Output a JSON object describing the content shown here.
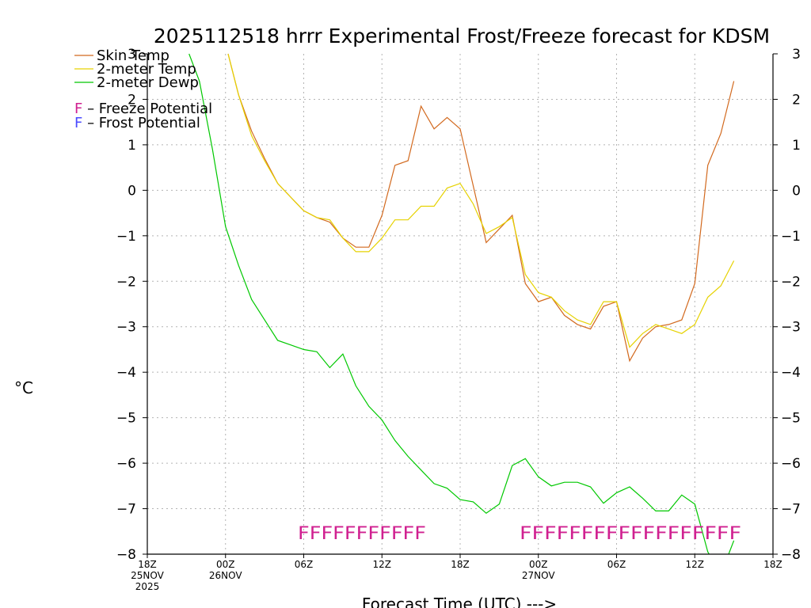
{
  "chart_data": {
    "type": "line",
    "title": "2025112518 hrrr Experimental Frost/Freeze forecast for KDSM",
    "ylabel_unit": "°C",
    "xlabel": "Forecast Time (UTC) --->",
    "ylim": [
      -8,
      3
    ],
    "xlim": [
      0,
      48
    ],
    "yticks": [
      "3",
      "2",
      "1",
      "0",
      "−1",
      "−2",
      "−3",
      "−4",
      "−5",
      "−6",
      "−7",
      "−8"
    ],
    "ytick_values": [
      3,
      2,
      1,
      0,
      -1,
      -2,
      -3,
      -4,
      -5,
      -6,
      -7,
      -8
    ],
    "xticks": [
      {
        "hour": 0,
        "label": "18Z",
        "date": "25NOV",
        "year": "2025"
      },
      {
        "hour": 6,
        "label": "00Z",
        "date": "26NOV",
        "year": ""
      },
      {
        "hour": 12,
        "label": "06Z",
        "date": "",
        "year": ""
      },
      {
        "hour": 18,
        "label": "12Z",
        "date": "",
        "year": ""
      },
      {
        "hour": 24,
        "label": "18Z",
        "date": "",
        "year": ""
      },
      {
        "hour": 30,
        "label": "00Z",
        "date": "27NOV",
        "year": ""
      },
      {
        "hour": 36,
        "label": "06Z",
        "date": "",
        "year": ""
      },
      {
        "hour": 42,
        "label": "12Z",
        "date": "",
        "year": ""
      },
      {
        "hour": 48,
        "label": "18Z",
        "date": "",
        "year": ""
      }
    ],
    "grid": true,
    "series": [
      {
        "name": "Skin Temp",
        "color": "#d2691e",
        "points": [
          [
            6.2,
            3.0
          ],
          [
            7,
            2.1
          ],
          [
            8,
            1.3
          ],
          [
            9,
            0.7
          ],
          [
            10,
            0.15
          ],
          [
            11,
            -0.15
          ],
          [
            12,
            -0.45
          ],
          [
            13,
            -0.6
          ],
          [
            14,
            -0.7
          ],
          [
            15,
            -1.05
          ],
          [
            16,
            -1.25
          ],
          [
            17,
            -1.25
          ],
          [
            18,
            -0.55
          ],
          [
            19,
            0.55
          ],
          [
            20,
            0.65
          ],
          [
            21,
            1.85
          ],
          [
            22,
            1.35
          ],
          [
            23,
            1.6
          ],
          [
            24,
            1.35
          ],
          [
            25,
            0.1
          ],
          [
            26,
            -1.15
          ],
          [
            27,
            -0.85
          ],
          [
            28,
            -0.55
          ],
          [
            29,
            -2.05
          ],
          [
            30,
            -2.45
          ],
          [
            31,
            -2.35
          ],
          [
            32,
            -2.75
          ],
          [
            33,
            -2.95
          ],
          [
            34,
            -3.05
          ],
          [
            35,
            -2.55
          ],
          [
            36,
            -2.45
          ],
          [
            37,
            -3.75
          ],
          [
            38,
            -3.25
          ],
          [
            39,
            -3.0
          ],
          [
            40,
            -2.95
          ],
          [
            41,
            -2.85
          ],
          [
            42,
            -2.05
          ],
          [
            43,
            0.55
          ],
          [
            44,
            1.25
          ],
          [
            45,
            2.4
          ]
        ]
      },
      {
        "name": "2-meter Temp",
        "color": "#e6d200",
        "points": [
          [
            6.2,
            3.0
          ],
          [
            7,
            2.1
          ],
          [
            8,
            1.2
          ],
          [
            9,
            0.65
          ],
          [
            10,
            0.15
          ],
          [
            11,
            -0.15
          ],
          [
            12,
            -0.45
          ],
          [
            13,
            -0.6
          ],
          [
            14,
            -0.65
          ],
          [
            15,
            -1.05
          ],
          [
            16,
            -1.35
          ],
          [
            17,
            -1.35
          ],
          [
            18,
            -1.05
          ],
          [
            19,
            -0.65
          ],
          [
            20,
            -0.65
          ],
          [
            21,
            -0.35
          ],
          [
            22,
            -0.35
          ],
          [
            23,
            0.05
          ],
          [
            24,
            0.15
          ],
          [
            25,
            -0.3
          ],
          [
            26,
            -0.95
          ],
          [
            27,
            -0.8
          ],
          [
            28,
            -0.6
          ],
          [
            29,
            -1.85
          ],
          [
            30,
            -2.25
          ],
          [
            31,
            -2.35
          ],
          [
            32,
            -2.65
          ],
          [
            33,
            -2.85
          ],
          [
            34,
            -2.95
          ],
          [
            35,
            -2.45
          ],
          [
            36,
            -2.45
          ],
          [
            37,
            -3.45
          ],
          [
            38,
            -3.15
          ],
          [
            39,
            -2.95
          ],
          [
            40,
            -3.05
          ],
          [
            41,
            -3.15
          ],
          [
            42,
            -2.95
          ],
          [
            43,
            -2.35
          ],
          [
            44,
            -2.1
          ],
          [
            45,
            -1.55
          ]
        ]
      },
      {
        "name": "2-meter Dewp",
        "color": "#00c800",
        "points": [
          [
            3.2,
            3.0
          ],
          [
            4,
            2.4
          ],
          [
            5,
            0.9
          ],
          [
            6,
            -0.8
          ],
          [
            7,
            -1.65
          ],
          [
            8,
            -2.4
          ],
          [
            9,
            -2.85
          ],
          [
            10,
            -3.3
          ],
          [
            11,
            -3.4
          ],
          [
            12,
            -3.5
          ],
          [
            13,
            -3.55
          ],
          [
            14,
            -3.9
          ],
          [
            15,
            -3.6
          ],
          [
            16,
            -4.3
          ],
          [
            17,
            -4.75
          ],
          [
            18,
            -5.05
          ],
          [
            19,
            -5.5
          ],
          [
            20,
            -5.85
          ],
          [
            21,
            -6.15
          ],
          [
            22,
            -6.45
          ],
          [
            23,
            -6.55
          ],
          [
            24,
            -6.8
          ],
          [
            25,
            -6.85
          ],
          [
            26,
            -7.1
          ],
          [
            27,
            -6.9
          ],
          [
            28,
            -6.05
          ],
          [
            29,
            -5.9
          ],
          [
            30,
            -6.3
          ],
          [
            31,
            -6.5
          ],
          [
            32,
            -6.42
          ],
          [
            33,
            -6.42
          ],
          [
            34,
            -6.52
          ],
          [
            35,
            -6.88
          ],
          [
            36,
            -6.65
          ],
          [
            37,
            -6.52
          ],
          [
            38,
            -6.77
          ],
          [
            39,
            -7.05
          ],
          [
            40,
            -7.05
          ],
          [
            41,
            -6.7
          ],
          [
            42,
            -6.9
          ],
          [
            43,
            -7.95
          ],
          [
            43.1,
            -8.0
          ]
        ],
        "tail_points": [
          [
            44.6,
            -8.0
          ],
          [
            45,
            -7.7
          ]
        ]
      }
    ],
    "legend": {
      "entries": [
        "Skin Temp",
        "2-meter Temp",
        "2-meter Dewp"
      ],
      "flag_entries": [
        {
          "letter": "F",
          "text": " – Freeze Potential",
          "color": "#d02090"
        },
        {
          "letter": "F",
          "text": " – Frost Potential",
          "color": "#4a4aff"
        }
      ]
    },
    "freeze_flags": {
      "color": "#d02090",
      "groups": [
        "FFFFFFFFFFF",
        "FFFFFFFFFFFFFFFFFF"
      ]
    }
  }
}
